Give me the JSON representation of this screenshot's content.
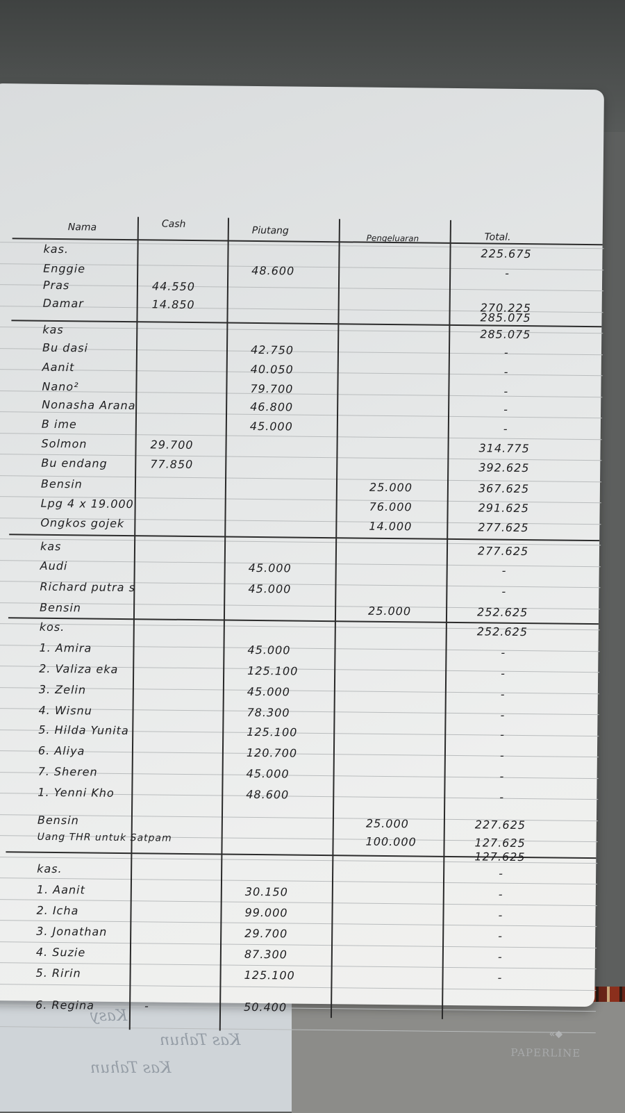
{
  "ledger": {
    "headers": {
      "name": "Nama",
      "cash": "Cash",
      "piutang": "Piutang",
      "pengeluaran": "Pengeluaran",
      "total": "Total."
    },
    "rows": [
      {
        "name": "kas.",
        "cash": "",
        "piutang": "",
        "pengeluaran": "",
        "total": "225.675"
      },
      {
        "name": "Enggie",
        "cash": "",
        "piutang": "48.600",
        "pengeluaran": "",
        "total": "-"
      },
      {
        "name": "Pras",
        "cash": "44.550",
        "piutang": "",
        "pengeluaran": "",
        "total": ""
      },
      {
        "name": "Damar",
        "cash": "14.850",
        "piutang": "",
        "pengeluaran": "",
        "total": "270.225"
      },
      {
        "name": "",
        "cash": "",
        "piutang": "",
        "pengeluaran": "",
        "total": "285.075"
      },
      {
        "name": "kas",
        "cash": "",
        "piutang": "",
        "pengeluaran": "",
        "total": "285.075"
      },
      {
        "name": "Bu dasi",
        "cash": "",
        "piutang": "42.750",
        "pengeluaran": "",
        "total": "-"
      },
      {
        "name": "Aanit",
        "cash": "",
        "piutang": "40.050",
        "pengeluaran": "",
        "total": "-"
      },
      {
        "name": "Nano²",
        "cash": "",
        "piutang": "79.700",
        "pengeluaran": "",
        "total": "-"
      },
      {
        "name": "Nonasha Arana",
        "cash": "",
        "piutang": "46.800",
        "pengeluaran": "",
        "total": "-"
      },
      {
        "name": "B ime",
        "cash": "",
        "piutang": "45.000",
        "pengeluaran": "",
        "total": "-"
      },
      {
        "name": "Solmon",
        "cash": "29.700",
        "piutang": "",
        "pengeluaran": "",
        "total": "314.775"
      },
      {
        "name": "Bu endang",
        "cash": "77.850",
        "piutang": "",
        "pengeluaran": "",
        "total": "392.625"
      },
      {
        "name": "Bensin",
        "cash": "",
        "piutang": "",
        "pengeluaran": "25.000",
        "total": "367.625"
      },
      {
        "name": "Lpg 4 x 19.000",
        "cash": "",
        "piutang": "",
        "pengeluaran": "76.000",
        "total": "291.625"
      },
      {
        "name": "Ongkos gojek",
        "cash": "",
        "piutang": "",
        "pengeluaran": "14.000",
        "total": "277.625"
      },
      {
        "name": "kas",
        "cash": "",
        "piutang": "",
        "pengeluaran": "",
        "total": "277.625"
      },
      {
        "name": "Audi",
        "cash": "",
        "piutang": "45.000",
        "pengeluaran": "",
        "total": "-"
      },
      {
        "name": "Richard putra s",
        "cash": "",
        "piutang": "45.000",
        "pengeluaran": "",
        "total": "-"
      },
      {
        "name": "Bensin",
        "cash": "",
        "piutang": "",
        "pengeluaran": "25.000",
        "total": "252.625"
      },
      {
        "name": "kos.",
        "cash": "",
        "piutang": "",
        "pengeluaran": "",
        "total": "252.625"
      },
      {
        "name": "1. Amira",
        "cash": "",
        "piutang": "45.000",
        "pengeluaran": "",
        "total": "-"
      },
      {
        "name": "2. Valiza eka",
        "cash": "",
        "piutang": "125.100",
        "pengeluaran": "",
        "total": "-"
      },
      {
        "name": "3. Zelin",
        "cash": "",
        "piutang": "45.000",
        "pengeluaran": "",
        "total": "-"
      },
      {
        "name": "4. Wisnu",
        "cash": "",
        "piutang": "78.300",
        "pengeluaran": "",
        "total": "-"
      },
      {
        "name": "5. Hilda Yunita",
        "cash": "",
        "piutang": "125.100",
        "pengeluaran": "",
        "total": "-"
      },
      {
        "name": "6. Aliya",
        "cash": "",
        "piutang": "120.700",
        "pengeluaran": "",
        "total": "-"
      },
      {
        "name": "7. Sheren",
        "cash": "",
        "piutang": "45.000",
        "pengeluaran": "",
        "total": "-"
      },
      {
        "name": "1. Yenni Kho",
        "cash": "",
        "piutang": "48.600",
        "pengeluaran": "",
        "total": "-"
      },
      {
        "name": "Bensin",
        "cash": "",
        "piutang": "",
        "pengeluaran": "25.000",
        "total": "227.625"
      },
      {
        "name": "Uang THR untuk Satpam",
        "cash": "",
        "piutang": "",
        "pengeluaran": "100.000",
        "total": "127.625"
      },
      {
        "name": "",
        "cash": "",
        "piutang": "",
        "pengeluaran": "",
        "total": "127.625"
      },
      {
        "name": "kas.",
        "cash": "",
        "piutang": "",
        "pengeluaran": "",
        "total": "-"
      },
      {
        "name": "1. Aanit",
        "cash": "",
        "piutang": "30.150",
        "pengeluaran": "",
        "total": "-"
      },
      {
        "name": "2. Icha",
        "cash": "",
        "piutang": "99.000",
        "pengeluaran": "",
        "total": "-"
      },
      {
        "name": "3. Jonathan",
        "cash": "",
        "piutang": "29.700",
        "pengeluaran": "",
        "total": "-"
      },
      {
        "name": "4. Suzie",
        "cash": "",
        "piutang": "87.300",
        "pengeluaran": "",
        "total": "-"
      },
      {
        "name": "5. Ririn",
        "cash": "",
        "piutang": "125.100",
        "pengeluaran": "",
        "total": "-"
      },
      {
        "name": "6. Regina",
        "cash": "-",
        "piutang": "50.400",
        "pengeluaran": "",
        "total": ""
      }
    ]
  },
  "brand": "PAPERLINE",
  "back_note": [
    "Kasy",
    "Kas Tahun",
    "Kas Tahun"
  ],
  "colors": {
    "ink": "#1d1d1f",
    "paper": "#e8e9e8"
  }
}
